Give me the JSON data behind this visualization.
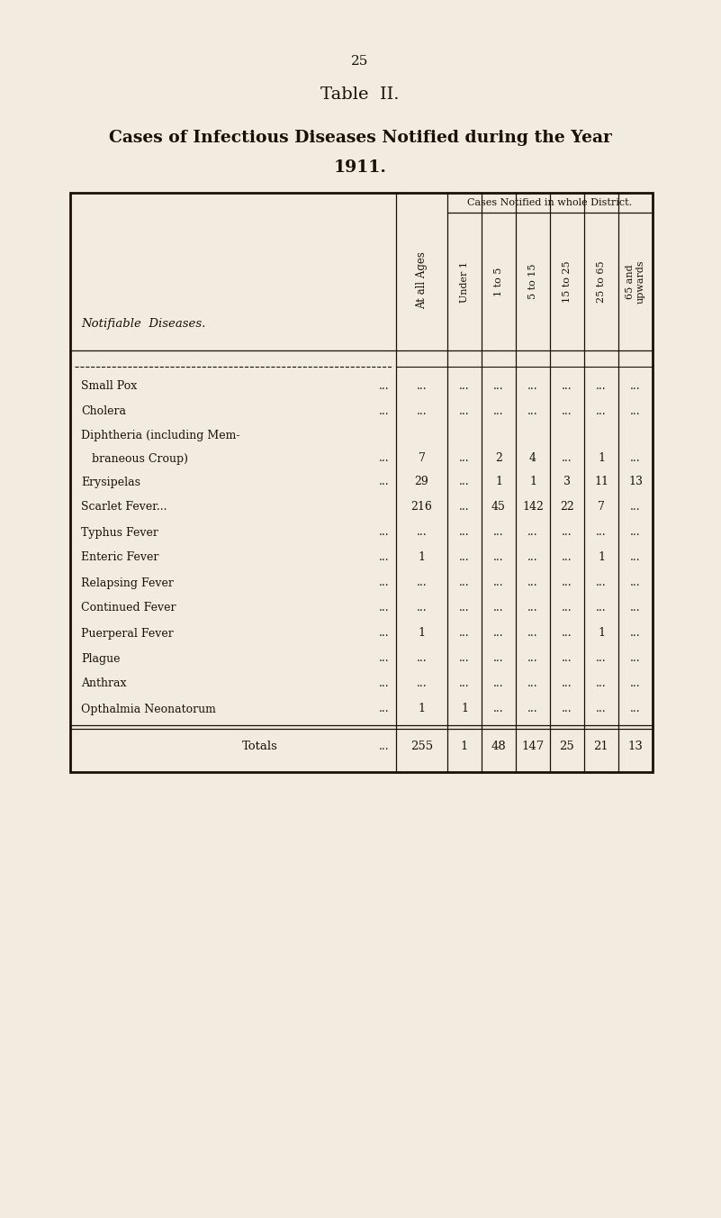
{
  "page_number": "25",
  "table_title": "Table  II.",
  "subtitle_line1": "Cases of Infectious Diseases Notified during the Year",
  "subtitle_line2": "1911.",
  "bg_color": "#f2ece0",
  "text_color": "#1a1008",
  "border_color": "#1a1008",
  "header_col0": "Notifiable  Diseases.",
  "header_col1": "At all Ages",
  "header_col_span": "Cases Notified in whole District.",
  "sub_headers": [
    "Under 1",
    "1 to 5",
    "5 to 15",
    "15 to 25",
    "25 to 65",
    "65 and\nupwards"
  ],
  "rows": [
    {
      "disease": "Small Pox",
      "ellipsis1": "...",
      "ellipsis2": "...",
      "total": "...",
      "cols": [
        "...",
        "...",
        "...",
        "...",
        "...",
        "..."
      ]
    },
    {
      "disease": "Cholera",
      "ellipsis1": "...",
      "ellipsis2": "...",
      "total": "...",
      "cols": [
        "...",
        "...",
        "...",
        "...",
        "...",
        "..."
      ]
    },
    {
      "disease": "Diphtheria (including Mem-",
      "line2": "braneous Croup)",
      "ellipsis1": "...",
      "ellipsis2": "...",
      "total": "7",
      "cols": [
        "...",
        "2",
        "4",
        "...",
        "1",
        "..."
      ]
    },
    {
      "disease": "Erysipelas",
      "ellipsis1": "...",
      "ellipsis2": "...",
      "total": "29",
      "cols": [
        "...",
        "1",
        "1",
        "3",
        "11",
        "13"
      ]
    },
    {
      "disease": "Scarlet Fever...",
      "ellipsis1": "",
      "ellipsis2": "...",
      "total": "216",
      "cols": [
        "...",
        "45",
        "142",
        "22",
        "7",
        "..."
      ]
    },
    {
      "disease": "Typhus Fever",
      "ellipsis1": "...",
      "ellipsis2": "...",
      "total": "...",
      "cols": [
        "...",
        "...",
        "...",
        "...",
        "...",
        "..."
      ]
    },
    {
      "disease": "Enteric Fever",
      "ellipsis1": "...",
      "ellipsis2": "...",
      "total": "1",
      "cols": [
        "...",
        "...",
        "...",
        "...",
        "1",
        "..."
      ]
    },
    {
      "disease": "Relapsing Fever",
      "ellipsis1": "...",
      "ellipsis2": "...",
      "total": "...",
      "cols": [
        "...",
        "...",
        "...",
        "...",
        "...",
        "..."
      ]
    },
    {
      "disease": "Continued Fever",
      "ellipsis1": "...",
      "ellipsis2": "...",
      "total": "...",
      "cols": [
        "...",
        "...",
        "...",
        "...",
        "...",
        "..."
      ]
    },
    {
      "disease": "Puerperal Fever",
      "ellipsis1": "...",
      "ellipsis2": "...",
      "total": "1",
      "cols": [
        "...",
        "...",
        "...",
        "...",
        "1",
        "..."
      ]
    },
    {
      "disease": "Plague",
      "ellipsis1": "...",
      "ellipsis2": "...",
      "total": "...",
      "cols": [
        "...",
        "...",
        "...",
        "...",
        "...",
        "..."
      ]
    },
    {
      "disease": "Anthrax",
      "ellipsis1": "...",
      "ellipsis2": "...",
      "total": "...",
      "cols": [
        "...",
        "...",
        "...",
        "...",
        "...",
        "..."
      ]
    },
    {
      "disease": "Opthalmia Neonatorum",
      "ellipsis1": "...",
      "ellipsis2": "...",
      "total": "1",
      "cols": [
        "1",
        "...",
        "...",
        "...",
        "...",
        "..."
      ]
    }
  ],
  "totals_row": {
    "label": "Totals",
    "dots": "...",
    "total": "255",
    "cols": [
      "1",
      "48",
      "147",
      "25",
      "21",
      "13"
    ]
  }
}
